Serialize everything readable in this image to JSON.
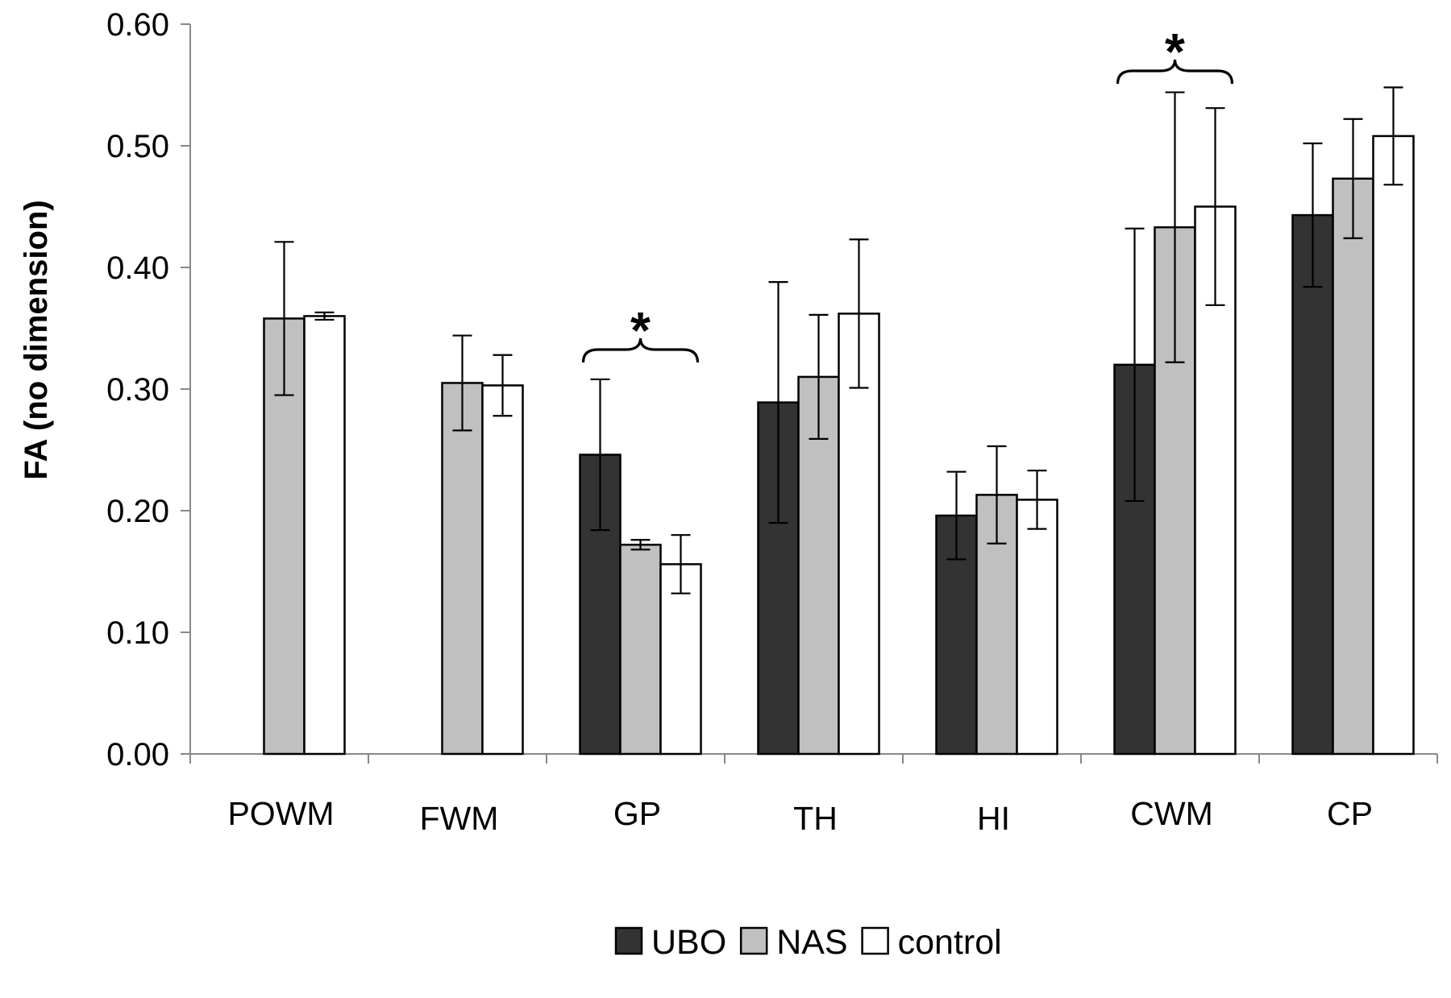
{
  "chart_data": {
    "type": "bar",
    "ylabel": "FA (no dimension)",
    "xlabel": "",
    "ylim": [
      0,
      0.6
    ],
    "yticks": [
      "0.00",
      "0.10",
      "0.20",
      "0.30",
      "0.40",
      "0.50",
      "0.60"
    ],
    "grid": false,
    "legend_position": "bottom-center",
    "categories": [
      "POWM",
      "FWM",
      "GP",
      "TH",
      "HI",
      "CWM",
      "CP"
    ],
    "series": [
      {
        "name": "UBO",
        "color": "#333333",
        "values": [
          0.0,
          0.0,
          0.246,
          0.289,
          0.196,
          0.32,
          0.443
        ],
        "error": [
          null,
          null,
          0.062,
          0.099,
          0.036,
          0.112,
          0.059
        ]
      },
      {
        "name": "NAS",
        "color": "#c0c0c0",
        "values": [
          0.358,
          0.305,
          0.172,
          0.31,
          0.213,
          0.433,
          0.473
        ],
        "error": [
          0.063,
          0.039,
          0.004,
          0.051,
          0.04,
          0.111,
          0.049
        ]
      },
      {
        "name": "control",
        "color": "#ffffff",
        "values": [
          0.36,
          0.303,
          0.156,
          0.362,
          0.209,
          0.45,
          0.508
        ],
        "error": [
          0.003,
          0.025,
          0.024,
          0.061,
          0.024,
          0.081,
          0.04
        ]
      }
    ],
    "annotations": [
      {
        "text": "*",
        "category": "GP",
        "spans_series": [
          "UBO",
          "control"
        ]
      },
      {
        "text": "*",
        "category": "CWM",
        "spans_series": [
          "UBO",
          "control"
        ]
      }
    ]
  }
}
